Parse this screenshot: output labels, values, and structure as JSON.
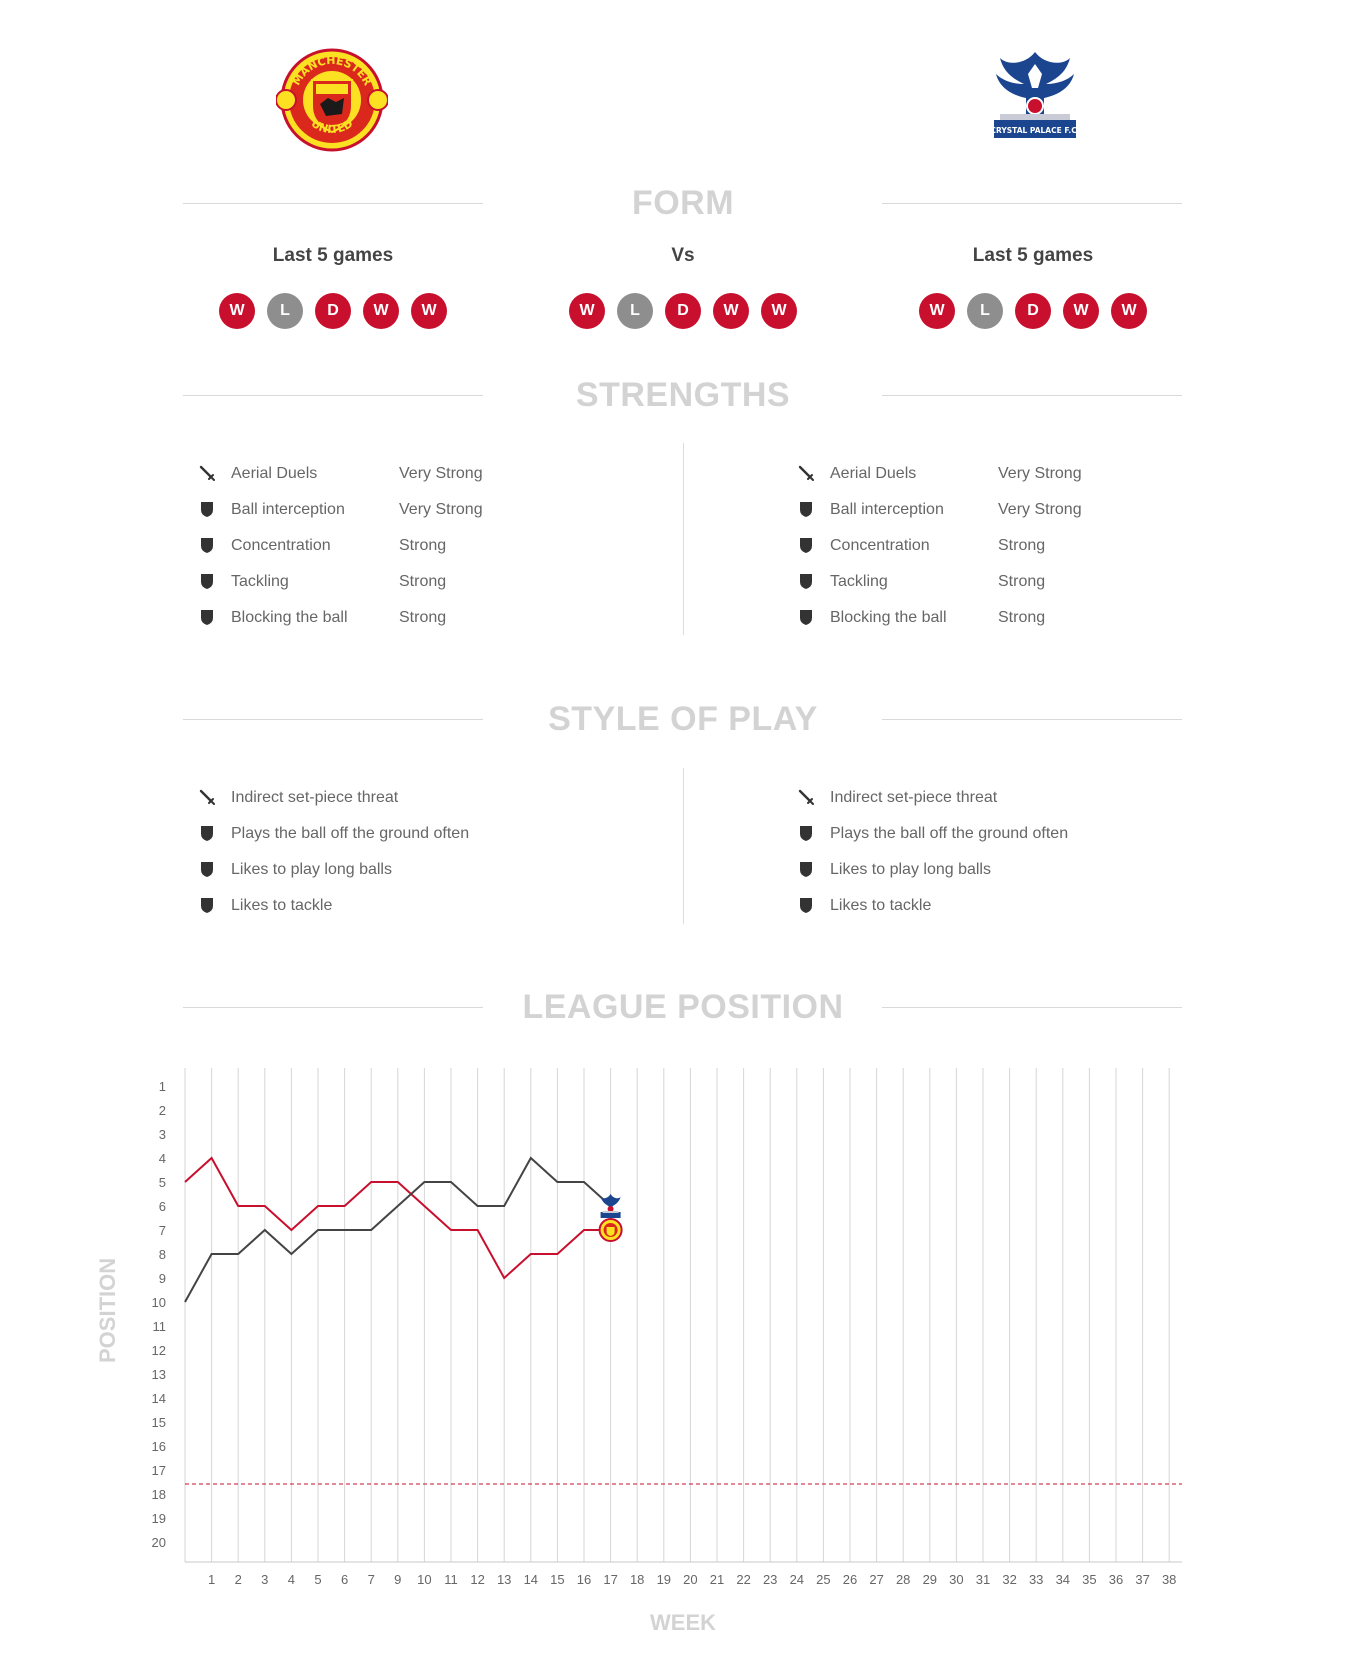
{
  "teams": [
    {
      "name": "Manchester United",
      "crest_text_top": "MANCHESTER",
      "crest_text_bottom": "UNITED",
      "color": "#c8102e",
      "crest_icon": "manchester-united-crest-icon"
    },
    {
      "name": "Crystal Palace",
      "crest_text": "CRYSTAL PALACE F.C.",
      "color": "#1b458f",
      "crest_icon": "crystal-palace-crest-icon"
    }
  ],
  "sections": {
    "form": "FORM",
    "strengths": "STRENGTHS",
    "style": "STYLE OF PLAY",
    "league": "LEAGUE POSITION"
  },
  "form": {
    "left_heading": "Last 5 games",
    "center_heading": "Vs",
    "right_heading": "Last 5 games",
    "left": [
      "W",
      "L",
      "D",
      "W",
      "W"
    ],
    "center": [
      "W",
      "L",
      "D",
      "W",
      "W"
    ],
    "right": [
      "W",
      "L",
      "D",
      "W",
      "W"
    ],
    "colors": {
      "W": "#c8102e",
      "L": "#8e8e8e",
      "D": "#c8102e"
    }
  },
  "strengths": {
    "left": [
      {
        "icon": "sword-icon",
        "label": "Aerial Duels",
        "level": "Very Strong"
      },
      {
        "icon": "shield-icon",
        "label": "Ball interception",
        "level": "Very Strong"
      },
      {
        "icon": "shield-icon",
        "label": "Concentration",
        "level": "Strong"
      },
      {
        "icon": "shield-icon",
        "label": "Tackling",
        "level": "Strong"
      },
      {
        "icon": "shield-icon",
        "label": "Blocking the ball",
        "level": "Strong"
      }
    ],
    "right": [
      {
        "icon": "sword-icon",
        "label": "Aerial Duels",
        "level": "Very Strong"
      },
      {
        "icon": "shield-icon",
        "label": "Ball interception",
        "level": "Very Strong"
      },
      {
        "icon": "shield-icon",
        "label": "Concentration",
        "level": "Strong"
      },
      {
        "icon": "shield-icon",
        "label": "Tackling",
        "level": "Strong"
      },
      {
        "icon": "shield-icon",
        "label": "Blocking the ball",
        "level": "Strong"
      }
    ]
  },
  "style": {
    "left": [
      {
        "icon": "sword-icon",
        "label": "Indirect set-piece threat"
      },
      {
        "icon": "shield-icon",
        "label": "Plays the ball off the ground often"
      },
      {
        "icon": "shield-icon",
        "label": "Likes to play long balls"
      },
      {
        "icon": "shield-icon",
        "label": "Likes to tackle"
      }
    ],
    "right": [
      {
        "icon": "sword-icon",
        "label": "Indirect set-piece threat"
      },
      {
        "icon": "shield-icon",
        "label": "Plays the ball off the ground often"
      },
      {
        "icon": "shield-icon",
        "label": "Likes to play long balls"
      },
      {
        "icon": "shield-icon",
        "label": "Likes to tackle"
      }
    ]
  },
  "chart_data": {
    "type": "line",
    "xlabel": "WEEK",
    "ylabel": "POSITION",
    "x": [
      0,
      1,
      2,
      3,
      4,
      5,
      6,
      7,
      8,
      9,
      10,
      11,
      12,
      13,
      14,
      15,
      16
    ],
    "x_tick_labels": [
      "1",
      "2",
      "3",
      "4",
      "5",
      "6",
      "7",
      "9",
      "10",
      "11",
      "12",
      "13",
      "14",
      "15",
      "16",
      "17",
      "18",
      "19",
      "20",
      "21",
      "22",
      "23",
      "24",
      "25",
      "26",
      "27",
      "28",
      "29",
      "30",
      "31",
      "32",
      "33",
      "34",
      "35",
      "36",
      "37",
      "38"
    ],
    "y_tick_labels": [
      "1",
      "2",
      "3",
      "4",
      "5",
      "6",
      "7",
      "8",
      "9",
      "10",
      "11",
      "12",
      "13",
      "14",
      "15",
      "16",
      "17",
      "18",
      "19",
      "20"
    ],
    "ylim": [
      1,
      20
    ],
    "y_inverted": true,
    "relegation_line_after_position": 17,
    "series": [
      {
        "team": "Manchester United",
        "color": "#c8102e",
        "marker_icon": "manchester-united-crest-icon",
        "values": [
          5,
          4,
          6,
          6,
          7,
          6,
          6,
          5,
          5,
          6,
          7,
          7,
          9,
          8,
          8,
          7,
          7
        ]
      },
      {
        "team": "Crystal Palace",
        "color": "#444444",
        "marker_icon": "crystal-palace-crest-icon",
        "values": [
          10,
          8,
          8,
          7,
          8,
          7,
          7,
          7,
          6,
          5,
          5,
          6,
          6,
          4,
          5,
          5,
          6
        ]
      }
    ],
    "grid": true
  }
}
